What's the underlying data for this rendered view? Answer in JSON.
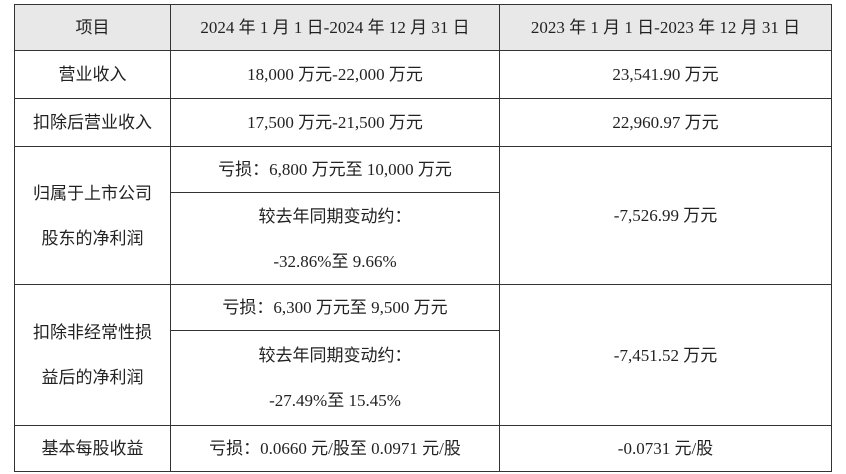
{
  "table": {
    "header": [
      "项目",
      "2024 年 1 月 1 日-2024 年 12 月 31 日",
      "2023 年 1 月 1 日-2023 年 12 月 31 日"
    ],
    "rows": [
      {
        "item": [
          "营业收入"
        ],
        "current": [
          [
            "18,000 万元-22,000 万元"
          ]
        ],
        "prior": "23,541.90 万元"
      },
      {
        "item": [
          "扣除后营业收入"
        ],
        "current": [
          [
            "17,500 万元-21,500 万元"
          ]
        ],
        "prior": "22,960.97 万元"
      },
      {
        "item": [
          "归属于上市公司",
          "股东的净利润"
        ],
        "current": [
          [
            "亏损：6,800 万元至 10,000 万元"
          ],
          [
            "较去年同期变动约：",
            "-32.86%至 9.66%"
          ]
        ],
        "prior": "-7,526.99 万元"
      },
      {
        "item": [
          "扣除非经常性损",
          "益后的净利润"
        ],
        "current": [
          [
            "亏损：6,300 万元至 9,500 万元"
          ],
          [
            "较去年同期变动约：",
            "-27.49%至 15.45%"
          ]
        ],
        "prior": "-7,451.52 万元"
      },
      {
        "item": [
          "基本每股收益"
        ],
        "current": [
          [
            "亏损：0.0660 元/股至 0.0971 元/股"
          ]
        ],
        "prior": "-0.0731 元/股"
      }
    ]
  }
}
